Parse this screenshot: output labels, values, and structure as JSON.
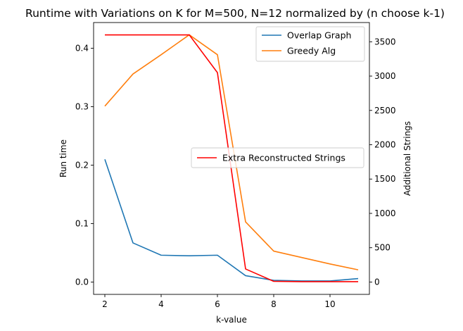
{
  "chart_data": {
    "type": "line",
    "title": "Runtime with Variations on K for M=500, N=12 normalized by (n choose k-1)",
    "xlabel": "k-value",
    "ylabel_left": "Run time",
    "ylabel_right": "Additional Strings",
    "xlim": [
      1.6,
      11.4
    ],
    "ylim_left": [
      -0.021,
      0.444
    ],
    "ylim_right": [
      -180,
      3780
    ],
    "xticks": [
      2,
      4,
      6,
      8,
      10
    ],
    "xtick_labels": [
      "2",
      "4",
      "6",
      "8",
      "10"
    ],
    "yticks_left": [
      0.0,
      0.1,
      0.2,
      0.3,
      0.4
    ],
    "ytick_labels_left": [
      "0.0",
      "0.1",
      "0.2",
      "0.3",
      "0.4"
    ],
    "yticks_right": [
      0,
      500,
      1000,
      1500,
      2000,
      2500,
      3000,
      3500
    ],
    "ytick_labels_right": [
      "0",
      "500",
      "1000",
      "1500",
      "2000",
      "2500",
      "3000",
      "3500"
    ],
    "grid": false,
    "x": [
      2,
      3,
      4,
      5,
      6,
      7,
      8,
      9,
      10,
      11
    ],
    "series": [
      {
        "name": "Overlap Graph",
        "axis": "left",
        "color": "#1f77b4",
        "values": [
          0.21,
          0.067,
          0.046,
          0.045,
          0.046,
          0.011,
          0.003,
          0.002,
          0.002,
          0.006
        ]
      },
      {
        "name": "Greedy Alg",
        "axis": "left",
        "color": "#ff7f0e",
        "values": [
          0.301,
          0.356,
          0.389,
          0.423,
          0.389,
          0.103,
          0.053,
          0.042,
          0.031,
          0.021
        ]
      },
      {
        "name": "Extra Reconstructed Strings",
        "axis": "right",
        "color": "#ff0000",
        "values": [
          3600,
          3600,
          3600,
          3600,
          3050,
          190,
          10,
          5,
          5,
          5
        ]
      }
    ],
    "legends": [
      {
        "placement": "upper right",
        "entries": [
          "Overlap Graph",
          "Greedy Alg"
        ]
      },
      {
        "placement": "center right",
        "entries": [
          "Extra Reconstructed Strings"
        ]
      }
    ]
  }
}
